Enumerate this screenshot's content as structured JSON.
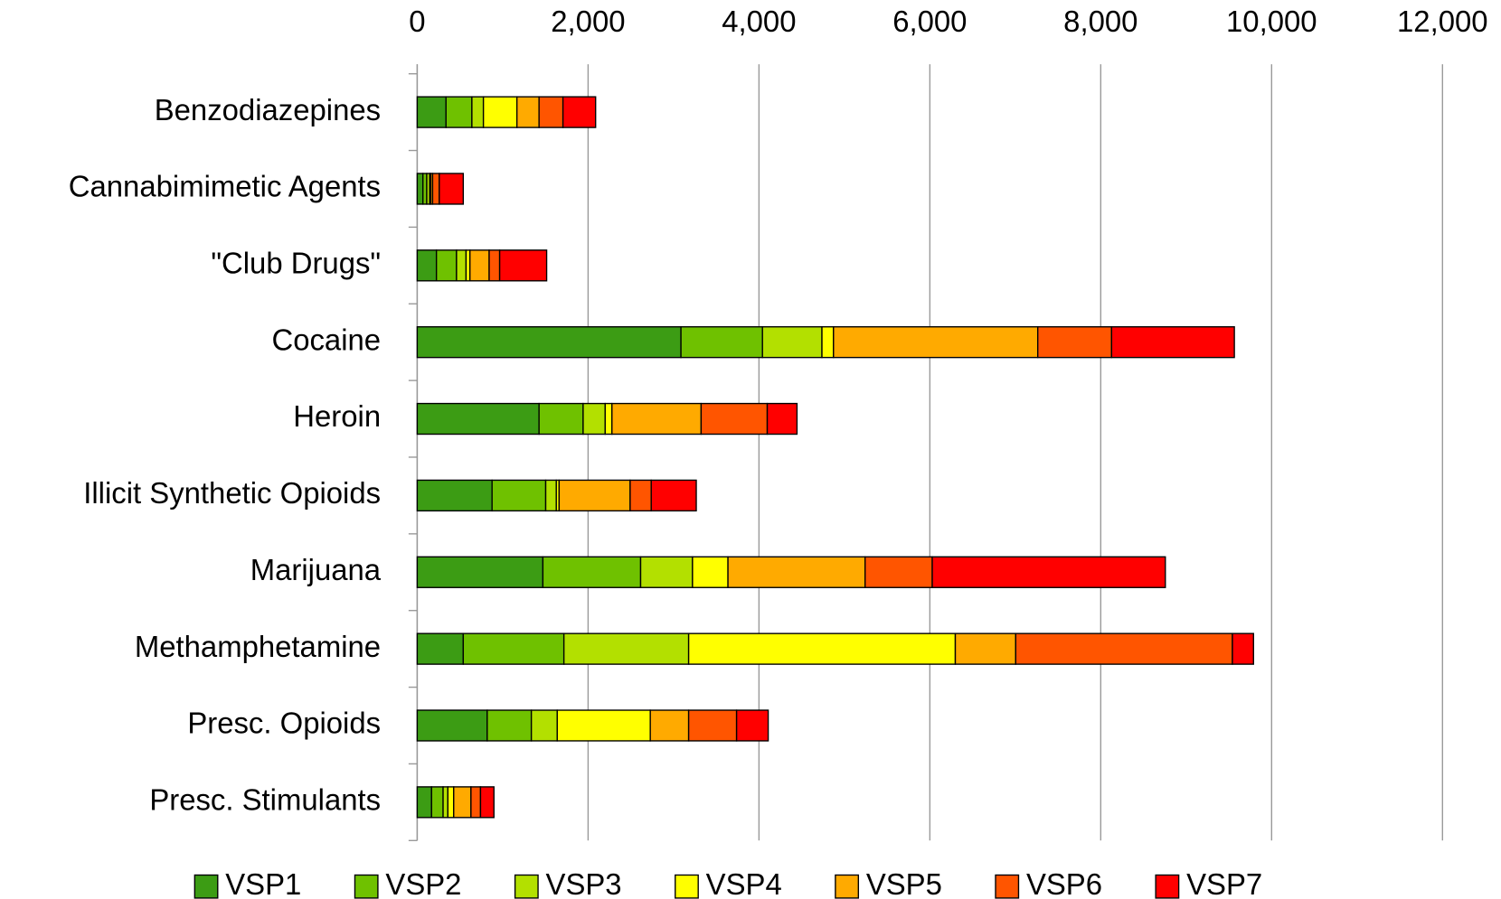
{
  "chart_data": {
    "type": "stacked-barh",
    "categories": [
      "Benzodiazepines",
      "Cannabimimetic Agents",
      "\"Club Drugs\"",
      "Cocaine",
      "Heroin",
      "Illicit Synthetic Opioids",
      "Marijuana",
      "Methamphetamine",
      "Presc. Opioids",
      "Presc. Stimulants"
    ],
    "series": [
      {
        "name": "VSP1",
        "color": "#3c9c14",
        "values": [
          337,
          67,
          225,
          3087,
          1426,
          876,
          1471,
          539,
          819,
          168
        ]
      },
      {
        "name": "VSP2",
        "color": "#6fc100",
        "values": [
          303,
          45,
          235,
          954,
          516,
          628,
          1144,
          1178,
          517,
          135
        ]
      },
      {
        "name": "VSP3",
        "color": "#b3e000",
        "values": [
          135,
          34,
          112,
          696,
          258,
          124,
          607,
          1460,
          303,
          56
        ]
      },
      {
        "name": "VSP4",
        "color": "#ffff00",
        "values": [
          392,
          11,
          45,
          135,
          79,
          33,
          415,
          3121,
          1089,
          68
        ]
      },
      {
        "name": "VSP5",
        "color": "#ffaa00",
        "values": [
          259,
          23,
          225,
          2391,
          1044,
          831,
          1605,
          707,
          449,
          202
        ]
      },
      {
        "name": "VSP6",
        "color": "#ff5500",
        "values": [
          280,
          78,
          123,
          864,
          774,
          247,
          786,
          2536,
          561,
          112
        ]
      },
      {
        "name": "VSP7",
        "color": "#ff0000",
        "values": [
          382,
          281,
          550,
          1437,
          348,
          527,
          2728,
          247,
          370,
          157
        ]
      }
    ],
    "xlim": [
      0,
      12000
    ],
    "xticks": [
      0,
      {
        "value": 2000,
        "label": "2,000"
      },
      {
        "value": 4000,
        "label": "4,000"
      },
      {
        "value": 6000,
        "label": "6,000"
      },
      {
        "value": 8000,
        "label": "8,000"
      },
      {
        "value": 10000,
        "label": "10,000"
      },
      {
        "value": 12000,
        "label": "12,000"
      }
    ],
    "grid": true,
    "legend": "bottom"
  }
}
